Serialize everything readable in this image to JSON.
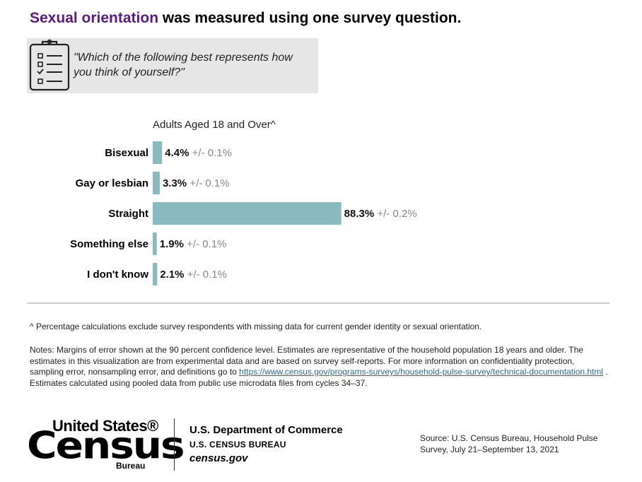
{
  "header": {
    "title_accent": "Sexual orientation",
    "title_rest": " was measured using one survey question."
  },
  "question": {
    "icon": "clipboard-checklist-icon",
    "text": "\"Which of the following best represents how you think of yourself?\""
  },
  "chart_data": {
    "type": "bar",
    "orientation": "horizontal",
    "title": "Adults Aged 18 and Over^",
    "categories": [
      "Bisexual",
      "Gay or lesbian",
      "Straight",
      "Something else",
      "I don't know"
    ],
    "values": [
      4.4,
      3.3,
      88.3,
      1.9,
      2.1
    ],
    "value_labels": [
      "4.4%",
      "3.3%",
      "88.3%",
      "1.9%",
      "2.1%"
    ],
    "margins_of_error": [
      "+/- 0.1%",
      "+/- 0.1%",
      "+/- 0.2%",
      "+/- 0.1%",
      "+/- 0.1%"
    ],
    "xlim": [
      0,
      100
    ],
    "grid": false,
    "bar_color": "#88babf"
  },
  "footnote": "^ Percentage calculations exclude survey respondents with missing data for current gender identity or sexual orientation.",
  "notes": {
    "text_before": "Notes: Margins of error shown at the 90 percent confidence level. Estimates are representative of the household population 18 years and older. The estimates in this visualization are from experimental data and are based on survey self-reports. For more information on confidentiality protection, sampling error, nonsampling error, and definitions go to ",
    "link": "https://www.census.gov/programs-surveys/household-pulse-survey/technical-documentation.html",
    "text_after": " . Estimates calculated using pooled data from public use microdata files from cycles 34–37."
  },
  "logo": {
    "line1": "United States®",
    "line2": "Census",
    "line3": "Bureau"
  },
  "department": {
    "name": "U.S. Department of Commerce",
    "bureau": "U.S. CENSUS BUREAU",
    "site": "census.gov"
  },
  "source": "Source: U.S. Census Bureau, Household Pulse Survey, July 21–September 13, 2021",
  "colors": {
    "accent": "#5a1a87",
    "bar": "#88babf",
    "moe_text": "#888888",
    "link": "#2a6a96"
  }
}
